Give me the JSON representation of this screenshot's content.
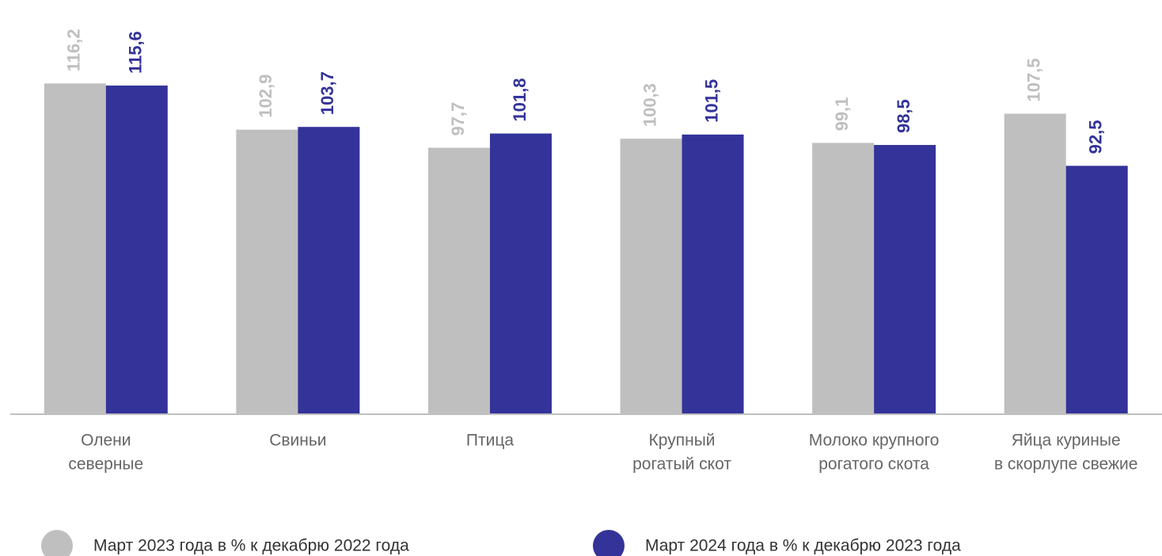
{
  "chart_data": {
    "type": "bar",
    "categories": [
      [
        "Олени",
        "северные"
      ],
      [
        "Свиньи"
      ],
      [
        "Птица"
      ],
      [
        "Крупный",
        "рогатый скот"
      ],
      [
        "Молоко крупного",
        "рогатого скота"
      ],
      [
        "Яйца куриные",
        "в скорлупе свежие"
      ]
    ],
    "series": [
      {
        "name": "Март 2023 года в % к декабрю 2022 года",
        "color": "#bfbfbf",
        "values": [
          116.2,
          102.9,
          97.7,
          100.3,
          99.1,
          107.5
        ],
        "value_labels": [
          "116,2",
          "102,9",
          "97,7",
          "100,3",
          "99,1",
          "107,5"
        ]
      },
      {
        "name": "Март 2024 года в % к декабрю 2023 года",
        "color": "#333399",
        "values": [
          115.6,
          103.7,
          101.8,
          101.5,
          98.5,
          92.5
        ],
        "value_labels": [
          "115,6",
          "103,7",
          "101,8",
          "101,5",
          "98,5",
          "92,5"
        ]
      }
    ],
    "ylim": [
      21,
      140
    ]
  }
}
